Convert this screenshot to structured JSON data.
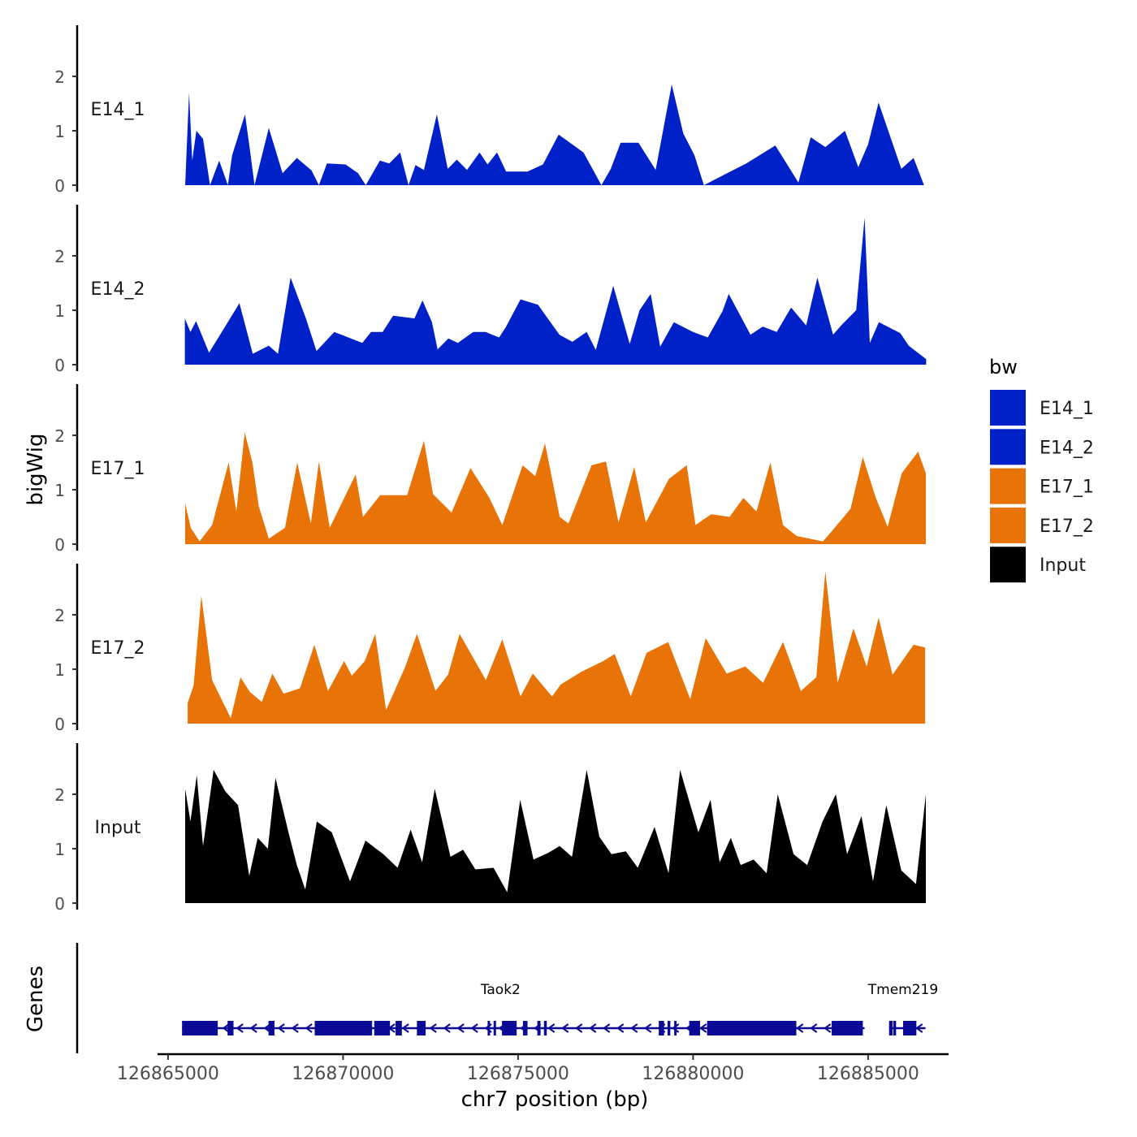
{
  "chart_data": {
    "type": "area",
    "y_axis_title": "bigWig",
    "x_axis_title": "chr7 position (bp)",
    "x_ticks": [
      126865000,
      126870000,
      126875000,
      126880000,
      126885000
    ],
    "x_range": [
      126864700,
      126887300
    ],
    "ylim": [
      0,
      2.9
    ],
    "y_ticks": [
      0,
      1,
      2
    ],
    "legend": {
      "title": "bw",
      "position": "right",
      "entries": [
        {
          "label": "E14_1",
          "color": "#0020C8"
        },
        {
          "label": "E14_2",
          "color": "#0020C8"
        },
        {
          "label": "E17_1",
          "color": "#E87408"
        },
        {
          "label": "E17_2",
          "color": "#E87408"
        },
        {
          "label": "Input",
          "color": "#000000"
        }
      ]
    },
    "series": [
      {
        "name": "E14_1",
        "color": "#0020C8",
        "label": "E14_1",
        "x": [
          126865490,
          126865600,
          126865690,
          126865810,
          126866000,
          126866200,
          126866460,
          126866710,
          126866830,
          126867200,
          126867330,
          126867470,
          126867880,
          126868270,
          126868680,
          126869100,
          126869310,
          126869540,
          126870070,
          126870430,
          126870650,
          126871050,
          126871320,
          126871630,
          126871870,
          126872070,
          126872310,
          126872680,
          126872990,
          126873250,
          126873540,
          126873900,
          126874130,
          126874400,
          126874660,
          126875270,
          126875710,
          126876160,
          126876870,
          126877380,
          126877650,
          126877930,
          126878440,
          126878930,
          126879390,
          126879720,
          126880040,
          126880310,
          126881520,
          126882350,
          126883010,
          126883360,
          126883780,
          126884340,
          126884720,
          126885000,
          126885300,
          126885950,
          126886300,
          126886600
        ],
        "y": [
          0,
          1.7,
          0.45,
          1.0,
          0.85,
          0,
          0.45,
          0,
          0.55,
          1.3,
          0.7,
          0,
          1.05,
          0.22,
          0.5,
          0.27,
          0,
          0.4,
          0.38,
          0.22,
          0,
          0.45,
          0.4,
          0.6,
          0,
          0.37,
          0.28,
          1.3,
          0.3,
          0.47,
          0.28,
          0.6,
          0.38,
          0.6,
          0.25,
          0.25,
          0.38,
          0.93,
          0.6,
          0,
          0.3,
          0.78,
          0.78,
          0.28,
          1.85,
          0.95,
          0.55,
          0,
          0.4,
          0.73,
          0.05,
          0.88,
          0.7,
          1.0,
          0.33,
          0.75,
          1.52,
          0.3,
          0.5,
          0
        ]
      },
      {
        "name": "E14_2",
        "color": "#0020C8",
        "label": "E14_2",
        "x": [
          126865480,
          126865640,
          126865800,
          126866170,
          126866630,
          126867040,
          126867420,
          126867880,
          126868140,
          126868500,
          126868940,
          126869240,
          126869750,
          126870550,
          126870800,
          126871130,
          126871430,
          126872040,
          126872270,
          126872540,
          126872700,
          126873010,
          126873280,
          126873720,
          126874070,
          126874460,
          126874660,
          126875070,
          126875570,
          126876180,
          126876550,
          126876960,
          126877220,
          126877720,
          126878190,
          126878470,
          126878790,
          126879060,
          126879450,
          126880000,
          126880420,
          126880840,
          126881020,
          126881640,
          126881990,
          126882390,
          126882800,
          126883230,
          126883550,
          126884000,
          126884230,
          126884660,
          126884900,
          126885050,
          126885310,
          126885920,
          126886160,
          126886660
        ],
        "y": [
          0.85,
          0.6,
          0.8,
          0.22,
          0.7,
          1.13,
          0.2,
          0.35,
          0.2,
          1.6,
          0.85,
          0.25,
          0.6,
          0.4,
          0.6,
          0.6,
          0.9,
          0.85,
          1.18,
          0.78,
          0.28,
          0.48,
          0.4,
          0.6,
          0.6,
          0.5,
          0.7,
          1.2,
          1.1,
          0.55,
          0.42,
          0.6,
          0.27,
          1.45,
          0.38,
          1.0,
          1.3,
          0.33,
          0.78,
          0.6,
          0.5,
          0.98,
          1.3,
          0.55,
          0.7,
          0.6,
          1.05,
          0.72,
          1.6,
          0.55,
          0.72,
          1.0,
          2.7,
          0.4,
          0.78,
          0.58,
          0.35,
          0.1
        ]
      },
      {
        "name": "E17_1",
        "color": "#E87408",
        "label": "E17_1",
        "x": [
          126865490,
          126865650,
          126865900,
          126866260,
          126866730,
          126866950,
          126867190,
          126867410,
          126867590,
          126867880,
          126868340,
          126868690,
          126869080,
          126869310,
          126869620,
          126870360,
          126870570,
          126871060,
          126871830,
          126872310,
          126872570,
          126873100,
          126873640,
          126874180,
          126874550,
          126875130,
          126875490,
          126875770,
          126876190,
          126876440,
          126877100,
          126877510,
          126877870,
          126878320,
          126878650,
          126879310,
          126879820,
          126880070,
          126880520,
          126881040,
          126881440,
          126881810,
          126882210,
          126882570,
          126882960,
          126883710,
          126883940,
          126884500,
          126884850,
          126885220,
          126885560,
          126885960,
          126886430,
          126886650
        ],
        "y": [
          0.75,
          0.3,
          0.05,
          0.35,
          1.5,
          0.6,
          2.05,
          1.5,
          0.7,
          0.1,
          0.3,
          1.5,
          0.38,
          1.52,
          0.3,
          1.28,
          0.5,
          0.9,
          0.9,
          1.9,
          0.92,
          0.58,
          1.4,
          0.85,
          0.35,
          1.45,
          1.25,
          1.85,
          0.5,
          0.38,
          1.45,
          1.52,
          0.4,
          1.42,
          0.4,
          1.2,
          1.45,
          0.35,
          0.55,
          0.5,
          0.85,
          0.6,
          1.5,
          0.35,
          0.15,
          0.05,
          0.22,
          0.65,
          1.6,
          0.85,
          0.32,
          1.3,
          1.7,
          1.3
        ]
      },
      {
        "name": "E17_2",
        "color": "#E87408",
        "label": "E17_2",
        "x": [
          126865560,
          126865730,
          126865950,
          126866260,
          126866790,
          126867070,
          126867340,
          126867680,
          126867980,
          126868300,
          126868770,
          126869180,
          126869570,
          126870030,
          126870250,
          126870620,
          126870920,
          126871230,
          126871780,
          126872110,
          126872640,
          126873000,
          126873330,
          126874080,
          126874550,
          126875070,
          126875420,
          126875970,
          126876220,
          126876800,
          126877430,
          126877760,
          126878220,
          126878670,
          126879290,
          126879920,
          126880360,
          126880960,
          126881490,
          126882000,
          126882570,
          126883080,
          126883520,
          126883780,
          126884130,
          126884580,
          126884960,
          126885300,
          126885700,
          126886300,
          126886630
        ],
        "y": [
          0.38,
          0.7,
          2.35,
          0.8,
          0.1,
          0.85,
          0.58,
          0.4,
          0.92,
          0.55,
          0.65,
          1.45,
          0.6,
          1.15,
          0.88,
          1.15,
          1.65,
          0.25,
          1.05,
          1.65,
          0.6,
          0.9,
          1.65,
          0.8,
          1.55,
          0.5,
          0.92,
          0.5,
          0.72,
          0.95,
          1.15,
          1.28,
          0.5,
          1.3,
          1.5,
          0.45,
          1.57,
          0.92,
          1.05,
          0.75,
          1.5,
          0.6,
          0.85,
          2.8,
          0.75,
          1.75,
          1.05,
          1.95,
          0.9,
          1.45,
          1.4
        ]
      },
      {
        "name": "Input",
        "color": "#000000",
        "label": "Input",
        "x": [
          126865490,
          126865640,
          126865820,
          126866000,
          126866300,
          126866640,
          126867000,
          126867320,
          126867560,
          126867850,
          126868070,
          126868440,
          126868680,
          126868920,
          126869250,
          126869680,
          126870200,
          126870640,
          126871150,
          126871560,
          126871930,
          126872260,
          126872620,
          126873070,
          126873430,
          126873780,
          126874300,
          126874690,
          126875060,
          126875440,
          126875850,
          126876190,
          126876540,
          126876960,
          126877320,
          126877670,
          126878080,
          126878420,
          126878900,
          126879300,
          126879630,
          126880150,
          126880500,
          126880760,
          126881080,
          126881360,
          126881730,
          126882100,
          126882420,
          126882870,
          126883260,
          126883700,
          126884080,
          126884400,
          126884810,
          126885140,
          126885520,
          126885950,
          126886370,
          126886650
        ],
        "y": [
          2.1,
          1.5,
          2.35,
          1.05,
          2.45,
          2.05,
          1.8,
          0.5,
          1.2,
          1.0,
          2.3,
          1.3,
          0.7,
          0.25,
          1.5,
          1.3,
          0.4,
          1.15,
          0.9,
          0.65,
          1.35,
          0.75,
          2.1,
          0.85,
          0.98,
          0.62,
          0.65,
          0.2,
          1.9,
          0.8,
          0.92,
          1.05,
          0.85,
          2.45,
          1.22,
          0.9,
          0.95,
          0.65,
          1.4,
          0.55,
          2.45,
          1.3,
          1.9,
          0.75,
          1.2,
          0.7,
          0.8,
          0.55,
          2.0,
          0.9,
          0.7,
          1.5,
          2.0,
          0.9,
          1.6,
          0.4,
          1.8,
          0.6,
          0.35,
          2.0
        ]
      }
    ],
    "genes_track": {
      "label": "Genes",
      "transcripts": [
        {
          "name": "Taok2",
          "start": 126865400,
          "end": 126874800,
          "exons": [
            [
              126865400,
              126866420
            ],
            [
              126866700,
              126866870
            ],
            [
              126867870,
              126868040
            ],
            [
              126869190,
              126870830
            ],
            [
              126870890,
              126871340
            ],
            [
              126871500,
              126871680
            ],
            [
              126872110,
              126872360
            ],
            [
              126874130,
              126874180
            ]
          ]
        },
        {
          "name": "Taok2",
          "start": 126874300,
          "end": 126884900,
          "exons": [
            [
              126874300,
              126874370
            ],
            [
              126874540,
              126874960
            ],
            [
              126875140,
              126875270
            ],
            [
              126875550,
              126875640
            ],
            [
              126875740,
              126875820
            ],
            [
              126879020,
              126879170
            ],
            [
              126879270,
              126879350
            ],
            [
              126879460,
              126879530
            ],
            [
              126879890,
              126880200
            ],
            [
              126880400,
              126882950
            ],
            [
              126883960,
              126884850
            ]
          ]
        },
        {
          "name": "Tmem219",
          "start": 126885600,
          "end": 126886640,
          "exons": [
            [
              126885600,
              126885700
            ],
            [
              126885720,
              126885800
            ],
            [
              126886000,
              126886380
            ]
          ]
        }
      ],
      "labels": [
        {
          "text": "Taok2",
          "x": 126874500
        },
        {
          "text": "Tmem219",
          "x": 126886000
        }
      ]
    }
  }
}
